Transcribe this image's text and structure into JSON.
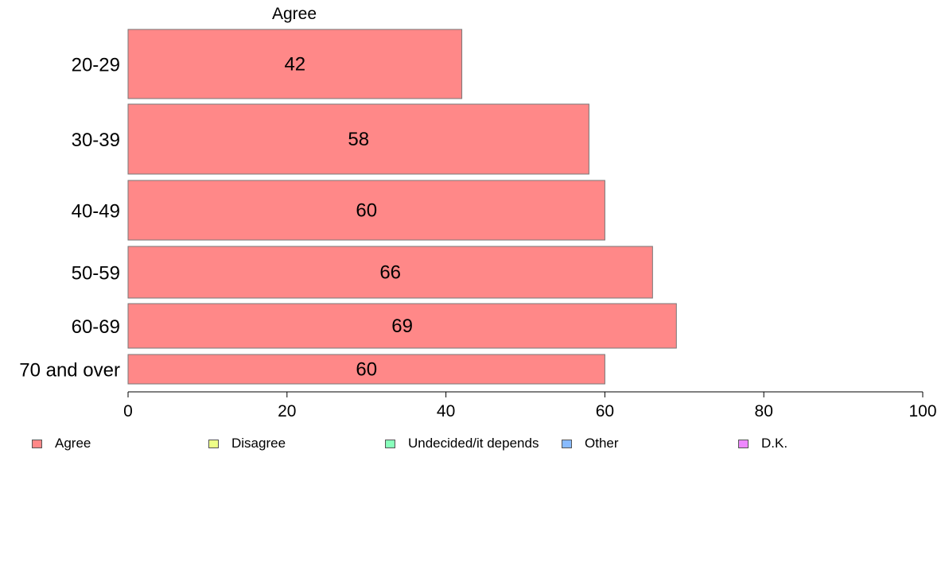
{
  "chart_data": {
    "type": "bar",
    "orientation": "horizontal",
    "title": "Agree",
    "categories": [
      "20-29",
      "30-39",
      "40-49",
      "50-59",
      "60-69",
      "70 and over"
    ],
    "series": [
      {
        "name": "Agree",
        "values": [
          42,
          58,
          60,
          66,
          69,
          60
        ]
      }
    ],
    "data_labels": [
      "42",
      "58",
      "60",
      "66",
      "69",
      "60"
    ],
    "xlim": [
      0,
      100
    ],
    "x_ticks": [
      0,
      20,
      40,
      60,
      80,
      100
    ],
    "xlabel": "",
    "ylabel": "",
    "grid": false,
    "legend_position": "bottom",
    "legend": [
      {
        "label": "Agree",
        "color": "#ff8888"
      },
      {
        "label": "Disagree",
        "color": "#eeff88"
      },
      {
        "label": "Undecided/it depends",
        "color": "#88ffbb"
      },
      {
        "label": "Other",
        "color": "#88bbff"
      },
      {
        "label": "D.K.",
        "color": "#ee88ff"
      }
    ],
    "bar_color": "#ff8888"
  }
}
